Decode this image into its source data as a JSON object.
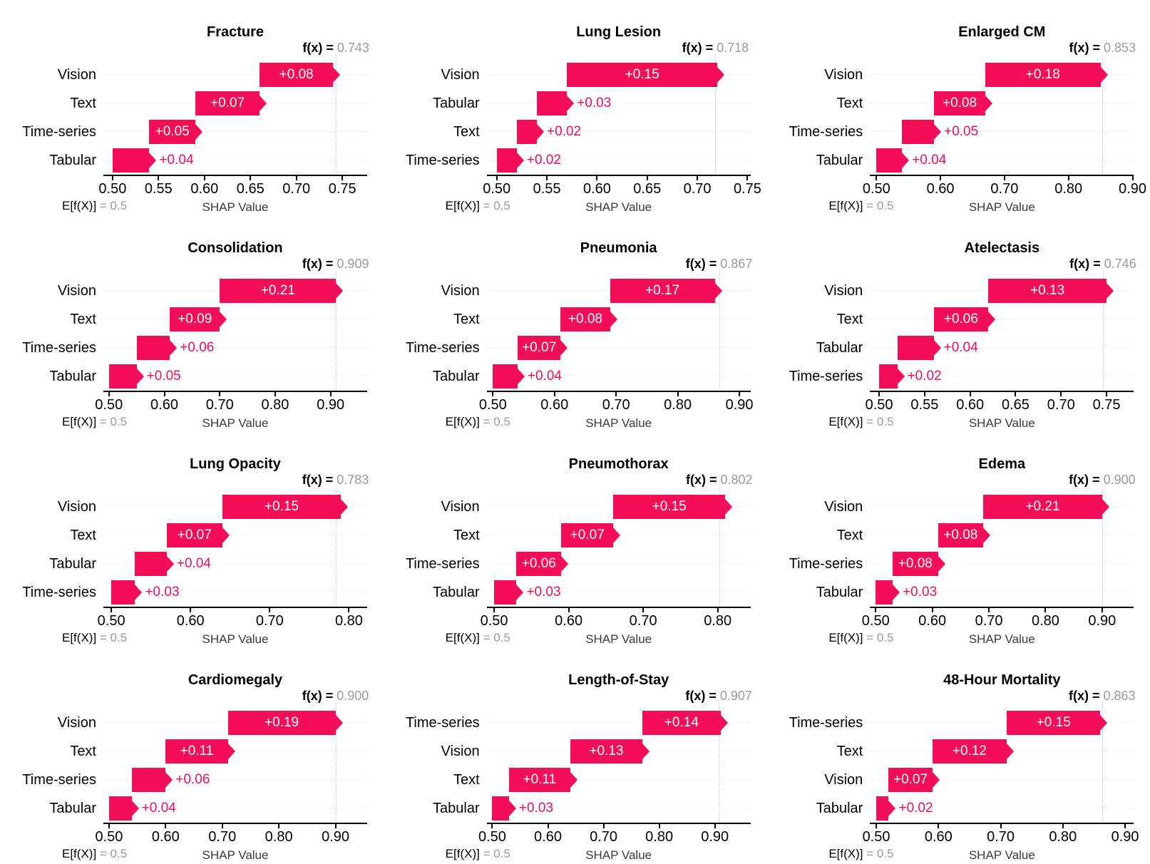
{
  "page": {
    "background": "#ffffff"
  },
  "colors": {
    "bar": "#f40d57",
    "bar_inside_label": "#ffffff",
    "bar_outside_label": "#f40d57",
    "fx_value_text": "#9b9b9b",
    "base_value_text": "#9b9b9b",
    "fx_reference_line": "#c9c9c9",
    "row_gridline": "#e7e7e7",
    "axis": "#000000",
    "xaxis_title_text": "#3a3a3a"
  },
  "labels": {
    "fx_prefix": "f(x) =",
    "base_prefix": "E[f(X)]",
    "base_equals": "= 0.5",
    "xlabel": "SHAP Value"
  },
  "chart_data": [
    {
      "type": "bar",
      "subtype": "waterfall",
      "title": "Fracture",
      "fx": 0.743,
      "base": 0.5,
      "xlim": [
        0.49,
        0.777
      ],
      "xticks": [
        0.5,
        0.55,
        0.6,
        0.65,
        0.7,
        0.75
      ],
      "xlabel": "SHAP Value",
      "rows": [
        {
          "label": "Vision",
          "delta": 0.08,
          "inside": true
        },
        {
          "label": "Text",
          "delta": 0.07,
          "inside": true
        },
        {
          "label": "Time-series",
          "delta": 0.05,
          "inside": true
        },
        {
          "label": "Tabular",
          "delta": 0.04,
          "inside": false
        }
      ]
    },
    {
      "type": "bar",
      "subtype": "waterfall",
      "title": "Lung Lesion",
      "fx": 0.718,
      "base": 0.5,
      "xlim": [
        0.49,
        0.753
      ],
      "xticks": [
        0.5,
        0.55,
        0.6,
        0.65,
        0.7,
        0.75
      ],
      "xlabel": "SHAP Value",
      "rows": [
        {
          "label": "Vision",
          "delta": 0.15,
          "inside": true
        },
        {
          "label": "Tabular",
          "delta": 0.03,
          "inside": false
        },
        {
          "label": "Text",
          "delta": 0.02,
          "inside": false
        },
        {
          "label": "Time-series",
          "delta": 0.02,
          "inside": false
        }
      ]
    },
    {
      "type": "bar",
      "subtype": "waterfall",
      "title": "Enlarged CM",
      "fx": 0.853,
      "base": 0.5,
      "xlim": [
        0.49,
        0.902
      ],
      "xticks": [
        0.5,
        0.6,
        0.7,
        0.8,
        0.9
      ],
      "xlabel": "SHAP Value",
      "rows": [
        {
          "label": "Vision",
          "delta": 0.18,
          "inside": true
        },
        {
          "label": "Text",
          "delta": 0.08,
          "inside": true
        },
        {
          "label": "Time-series",
          "delta": 0.05,
          "inside": false
        },
        {
          "label": "Tabular",
          "delta": 0.04,
          "inside": false
        }
      ]
    },
    {
      "type": "bar",
      "subtype": "waterfall",
      "title": "Consolidation",
      "fx": 0.909,
      "base": 0.5,
      "xlim": [
        0.49,
        0.966
      ],
      "xticks": [
        0.5,
        0.6,
        0.7,
        0.8,
        0.9
      ],
      "xlabel": "SHAP Value",
      "rows": [
        {
          "label": "Vision",
          "delta": 0.21,
          "inside": true
        },
        {
          "label": "Text",
          "delta": 0.09,
          "inside": true
        },
        {
          "label": "Time-series",
          "delta": 0.06,
          "inside": false
        },
        {
          "label": "Tabular",
          "delta": 0.05,
          "inside": false
        }
      ]
    },
    {
      "type": "bar",
      "subtype": "waterfall",
      "title": "Pneumonia",
      "fx": 0.867,
      "base": 0.5,
      "xlim": [
        0.49,
        0.918
      ],
      "xticks": [
        0.5,
        0.6,
        0.7,
        0.8,
        0.9
      ],
      "xlabel": "SHAP Value",
      "rows": [
        {
          "label": "Vision",
          "delta": 0.17,
          "inside": true
        },
        {
          "label": "Text",
          "delta": 0.08,
          "inside": true
        },
        {
          "label": "Time-series",
          "delta": 0.07,
          "inside": true
        },
        {
          "label": "Tabular",
          "delta": 0.04,
          "inside": false
        }
      ]
    },
    {
      "type": "bar",
      "subtype": "waterfall",
      "title": "Atelectasis",
      "fx": 0.746,
      "base": 0.5,
      "xlim": [
        0.49,
        0.78
      ],
      "xticks": [
        0.5,
        0.55,
        0.6,
        0.65,
        0.7,
        0.75
      ],
      "xlabel": "SHAP Value",
      "rows": [
        {
          "label": "Vision",
          "delta": 0.13,
          "inside": true
        },
        {
          "label": "Text",
          "delta": 0.06,
          "inside": true
        },
        {
          "label": "Tabular",
          "delta": 0.04,
          "inside": false
        },
        {
          "label": "Time-series",
          "delta": 0.02,
          "inside": false
        }
      ]
    },
    {
      "type": "bar",
      "subtype": "waterfall",
      "title": "Lung Opacity",
      "fx": 0.783,
      "base": 0.5,
      "xlim": [
        0.49,
        0.823
      ],
      "xticks": [
        0.5,
        0.6,
        0.7,
        0.8
      ],
      "xlabel": "SHAP Value",
      "rows": [
        {
          "label": "Vision",
          "delta": 0.15,
          "inside": true
        },
        {
          "label": "Text",
          "delta": 0.07,
          "inside": true
        },
        {
          "label": "Tabular",
          "delta": 0.04,
          "inside": false
        },
        {
          "label": "Time-series",
          "delta": 0.03,
          "inside": false
        }
      ]
    },
    {
      "type": "bar",
      "subtype": "waterfall",
      "title": "Pneumothorax",
      "fx": 0.802,
      "base": 0.5,
      "xlim": [
        0.49,
        0.844
      ],
      "xticks": [
        0.5,
        0.6,
        0.7,
        0.8
      ],
      "xlabel": "SHAP Value",
      "rows": [
        {
          "label": "Vision",
          "delta": 0.15,
          "inside": true
        },
        {
          "label": "Text",
          "delta": 0.07,
          "inside": true
        },
        {
          "label": "Time-series",
          "delta": 0.06,
          "inside": true
        },
        {
          "label": "Tabular",
          "delta": 0.03,
          "inside": false
        }
      ]
    },
    {
      "type": "bar",
      "subtype": "waterfall",
      "title": "Edema",
      "fx": 0.9,
      "base": 0.5,
      "xlim": [
        0.49,
        0.956
      ],
      "xticks": [
        0.5,
        0.6,
        0.7,
        0.8,
        0.9
      ],
      "xlabel": "SHAP Value",
      "rows": [
        {
          "label": "Vision",
          "delta": 0.21,
          "inside": true
        },
        {
          "label": "Text",
          "delta": 0.08,
          "inside": true
        },
        {
          "label": "Time-series",
          "delta": 0.08,
          "inside": true
        },
        {
          "label": "Tabular",
          "delta": 0.03,
          "inside": false
        }
      ]
    },
    {
      "type": "bar",
      "subtype": "waterfall",
      "title": "Cardiomegaly",
      "fx": 0.9,
      "base": 0.5,
      "xlim": [
        0.49,
        0.956
      ],
      "xticks": [
        0.5,
        0.6,
        0.7,
        0.8,
        0.9
      ],
      "xlabel": "SHAP Value",
      "rows": [
        {
          "label": "Vision",
          "delta": 0.19,
          "inside": true
        },
        {
          "label": "Text",
          "delta": 0.11,
          "inside": true
        },
        {
          "label": "Time-series",
          "delta": 0.06,
          "inside": false
        },
        {
          "label": "Tabular",
          "delta": 0.04,
          "inside": false
        }
      ]
    },
    {
      "type": "bar",
      "subtype": "waterfall",
      "title": "Length-of-Stay",
      "fx": 0.907,
      "base": 0.5,
      "xlim": [
        0.49,
        0.964
      ],
      "xticks": [
        0.5,
        0.6,
        0.7,
        0.8,
        0.9
      ],
      "xlabel": "SHAP Value",
      "rows": [
        {
          "label": "Time-series",
          "delta": 0.14,
          "inside": true
        },
        {
          "label": "Vision",
          "delta": 0.13,
          "inside": true
        },
        {
          "label": "Text",
          "delta": 0.11,
          "inside": true
        },
        {
          "label": "Tabular",
          "delta": 0.03,
          "inside": false
        }
      ]
    },
    {
      "type": "bar",
      "subtype": "waterfall",
      "title": "48-Hour Mortality",
      "fx": 0.863,
      "base": 0.5,
      "xlim": [
        0.49,
        0.914
      ],
      "xticks": [
        0.5,
        0.6,
        0.7,
        0.8,
        0.9
      ],
      "xlabel": "SHAP Value",
      "rows": [
        {
          "label": "Time-series",
          "delta": 0.15,
          "inside": true
        },
        {
          "label": "Text",
          "delta": 0.12,
          "inside": true
        },
        {
          "label": "Vision",
          "delta": 0.07,
          "inside": true
        },
        {
          "label": "Tabular",
          "delta": 0.02,
          "inside": false
        }
      ]
    }
  ]
}
